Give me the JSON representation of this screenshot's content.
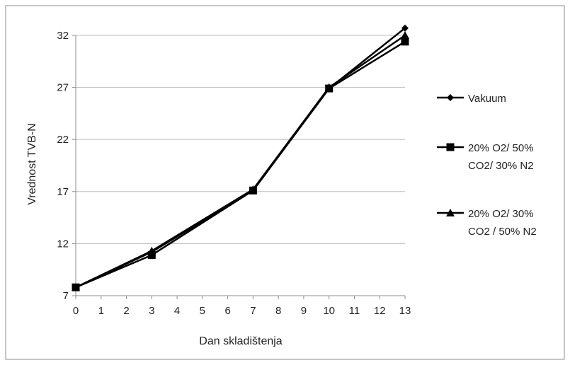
{
  "chart_data": {
    "type": "line",
    "title": "",
    "xlabel": "Dan skladištenja",
    "ylabel": "Vrednost TVB-N",
    "x_ticks": [
      0,
      1,
      2,
      3,
      4,
      5,
      6,
      7,
      8,
      9,
      10,
      11,
      12,
      13
    ],
    "y_ticks": [
      7,
      12,
      17,
      22,
      27,
      32
    ],
    "xlim": [
      0,
      13
    ],
    "ylim": [
      7,
      32
    ],
    "grid": "horizontal",
    "legend_position": "right",
    "x": [
      0,
      3,
      7,
      10,
      13
    ],
    "series": [
      {
        "name": "Vakuum",
        "legend_lines": [
          "Vakuum"
        ],
        "marker": "diamond",
        "values": [
          7.8,
          11.2,
          17.1,
          26.9,
          32.7
        ]
      },
      {
        "name": "20% O2/ 50% CO2/ 30% N2",
        "legend_lines": [
          "20% O2/ 50%",
          "CO2/ 30% N2"
        ],
        "marker": "square",
        "values": [
          7.8,
          10.9,
          17.1,
          26.9,
          31.4
        ]
      },
      {
        "name": "20% O2/ 30% CO2 / 50% N2",
        "legend_lines": [
          "20% O2/ 30%",
          "CO2 / 50% N2"
        ],
        "marker": "triangle",
        "values": [
          7.8,
          11.3,
          17.2,
          27.0,
          32.0
        ]
      }
    ]
  }
}
